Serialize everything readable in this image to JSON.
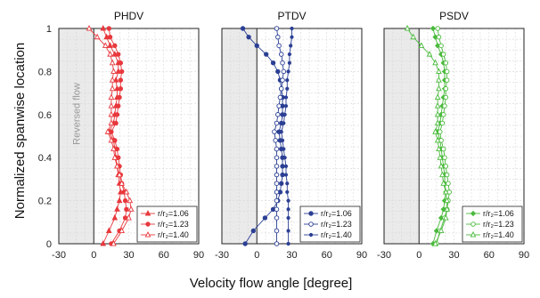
{
  "ylabel": "Normalized spanwise location",
  "xlabel": "Velocity flow angle [degree]",
  "shade_label": "Reversed flow",
  "legend_labels": [
    "r/r₂=1.06",
    "r/r₂=1.23",
    "r/r₂=1.40"
  ],
  "chart_data": [
    {
      "type": "line",
      "title": "PHDV",
      "color": "#e8383d",
      "xlim": [
        -30,
        90
      ],
      "ylim": [
        0,
        1
      ],
      "xticks": [
        "-30",
        "0",
        "30",
        "60",
        "90"
      ],
      "yticks": [
        "0",
        "0.2",
        "0.4",
        "0.6",
        "0.8",
        "1"
      ],
      "shaded_region_x": [
        -30,
        0
      ],
      "series": [
        {
          "name": "r/r₂=1.06",
          "marker": "triangle",
          "x": [
            8,
            11,
            14,
            18,
            21,
            21,
            19,
            20,
            20,
            19,
            18,
            17,
            13,
            17,
            18,
            19,
            20,
            21,
            22,
            23,
            22,
            20,
            18,
            13,
            8
          ],
          "y": [
            1.0,
            0.96,
            0.92,
            0.88,
            0.84,
            0.8,
            0.76,
            0.72,
            0.68,
            0.64,
            0.6,
            0.56,
            0.52,
            0.48,
            0.44,
            0.4,
            0.36,
            0.32,
            0.28,
            0.24,
            0.2,
            0.16,
            0.12,
            0.06,
            0.0
          ]
        },
        {
          "name": "r/r₂=1.23",
          "marker": "circle",
          "x": [
            13,
            14,
            18,
            21,
            23,
            24,
            23,
            23,
            22,
            21,
            20,
            19,
            15,
            18,
            20,
            21,
            22,
            23,
            24,
            26,
            27,
            28,
            27,
            22,
            15
          ],
          "y": [
            1.0,
            0.96,
            0.92,
            0.88,
            0.84,
            0.8,
            0.76,
            0.72,
            0.68,
            0.64,
            0.6,
            0.56,
            0.52,
            0.48,
            0.44,
            0.4,
            0.36,
            0.32,
            0.28,
            0.24,
            0.2,
            0.16,
            0.12,
            0.06,
            0.0
          ]
        },
        {
          "name": "r/r₂=1.40",
          "marker": "triangle-open",
          "x": [
            -4,
            3,
            10,
            14,
            16,
            17,
            16,
            16,
            15,
            15,
            15,
            15,
            12,
            15,
            17,
            18,
            20,
            22,
            24,
            28,
            31,
            32,
            30,
            24,
            17
          ],
          "y": [
            1.0,
            0.96,
            0.92,
            0.88,
            0.84,
            0.8,
            0.76,
            0.72,
            0.68,
            0.64,
            0.6,
            0.56,
            0.52,
            0.48,
            0.44,
            0.4,
            0.36,
            0.32,
            0.28,
            0.24,
            0.2,
            0.16,
            0.12,
            0.06,
            0.0
          ]
        }
      ]
    },
    {
      "type": "line",
      "title": "PTDV",
      "color": "#2b3f94",
      "xlim": [
        -30,
        90
      ],
      "ylim": [
        0,
        1
      ],
      "xticks": [
        "-30",
        "0",
        "30",
        "60",
        "90"
      ],
      "yticks": [
        "0",
        "0.2",
        "0.4",
        "0.6",
        "0.8",
        "1"
      ],
      "shaded_region_x": [
        -30,
        0
      ],
      "series": [
        {
          "name": "r/r₂=1.06",
          "marker": "circle",
          "x": [
            -12,
            -7,
            0,
            8,
            14,
            18,
            20,
            21,
            22,
            22,
            22,
            21,
            19,
            20,
            21,
            22,
            22,
            22,
            21,
            20,
            18,
            14,
            7,
            -3,
            -10
          ],
          "y": [
            1.0,
            0.96,
            0.92,
            0.88,
            0.84,
            0.8,
            0.76,
            0.72,
            0.68,
            0.64,
            0.6,
            0.56,
            0.52,
            0.48,
            0.44,
            0.4,
            0.36,
            0.32,
            0.28,
            0.24,
            0.2,
            0.16,
            0.12,
            0.06,
            0.0
          ]
        },
        {
          "name": "r/r₂=1.23",
          "marker": "circle-open",
          "x": [
            17,
            18,
            19,
            21,
            22,
            23,
            22,
            21,
            20,
            19,
            18,
            17,
            15,
            16,
            17,
            17,
            17,
            17,
            17,
            17,
            17,
            17,
            17,
            17,
            17
          ],
          "y": [
            1.0,
            0.96,
            0.92,
            0.88,
            0.84,
            0.8,
            0.76,
            0.72,
            0.68,
            0.64,
            0.6,
            0.56,
            0.52,
            0.48,
            0.44,
            0.4,
            0.36,
            0.32,
            0.28,
            0.24,
            0.2,
            0.16,
            0.12,
            0.06,
            0.0
          ]
        },
        {
          "name": "r/r₂=1.40",
          "marker": "circle-small",
          "x": [
            30,
            30,
            29,
            28,
            28,
            27,
            26,
            26,
            25,
            25,
            24,
            23,
            21,
            22,
            23,
            24,
            25,
            25,
            26,
            26,
            27,
            27,
            27,
            27,
            27
          ],
          "y": [
            1.0,
            0.96,
            0.92,
            0.88,
            0.84,
            0.8,
            0.76,
            0.72,
            0.68,
            0.64,
            0.6,
            0.56,
            0.52,
            0.48,
            0.44,
            0.4,
            0.36,
            0.32,
            0.28,
            0.24,
            0.2,
            0.16,
            0.12,
            0.06,
            0.0
          ]
        }
      ]
    },
    {
      "type": "line",
      "title": "PSDV",
      "color": "#4aba3c",
      "xlim": [
        -30,
        90
      ],
      "ylim": [
        0,
        1
      ],
      "xticks": [
        "-30",
        "0",
        "30",
        "60",
        "90"
      ],
      "yticks": [
        "0",
        "0.2",
        "0.4",
        "0.6",
        "0.8",
        "1"
      ],
      "shaded_region_x": [
        -30,
        0
      ],
      "series": [
        {
          "name": "r/r₂=1.06",
          "marker": "diamond",
          "x": [
            12,
            14,
            16,
            19,
            21,
            22,
            22,
            22,
            21,
            20,
            19,
            18,
            16,
            18,
            19,
            20,
            21,
            22,
            22,
            23,
            22,
            21,
            19,
            15,
            12
          ],
          "y": [
            1.0,
            0.96,
            0.92,
            0.88,
            0.84,
            0.8,
            0.76,
            0.72,
            0.68,
            0.64,
            0.6,
            0.56,
            0.52,
            0.48,
            0.44,
            0.4,
            0.36,
            0.32,
            0.28,
            0.24,
            0.2,
            0.16,
            0.12,
            0.06,
            0.0
          ]
        },
        {
          "name": "r/r₂=1.23",
          "marker": "circle-open",
          "x": [
            16,
            17,
            19,
            21,
            23,
            24,
            24,
            23,
            23,
            22,
            21,
            20,
            18,
            19,
            21,
            22,
            23,
            24,
            25,
            26,
            25,
            24,
            22,
            18,
            15
          ],
          "y": [
            1.0,
            0.96,
            0.92,
            0.88,
            0.84,
            0.8,
            0.76,
            0.72,
            0.68,
            0.64,
            0.6,
            0.56,
            0.52,
            0.48,
            0.44,
            0.4,
            0.36,
            0.32,
            0.28,
            0.24,
            0.2,
            0.16,
            0.12,
            0.06,
            0.0
          ]
        },
        {
          "name": "r/r₂=1.40",
          "marker": "triangle-open",
          "x": [
            -10,
            -5,
            2,
            9,
            14,
            17,
            17,
            17,
            16,
            16,
            16,
            16,
            14,
            16,
            17,
            18,
            19,
            20,
            21,
            23,
            24,
            24,
            23,
            19,
            14
          ],
          "y": [
            1.0,
            0.96,
            0.92,
            0.88,
            0.84,
            0.8,
            0.76,
            0.72,
            0.68,
            0.64,
            0.6,
            0.56,
            0.52,
            0.48,
            0.44,
            0.4,
            0.36,
            0.32,
            0.28,
            0.24,
            0.2,
            0.16,
            0.12,
            0.06,
            0.0
          ]
        }
      ]
    }
  ]
}
